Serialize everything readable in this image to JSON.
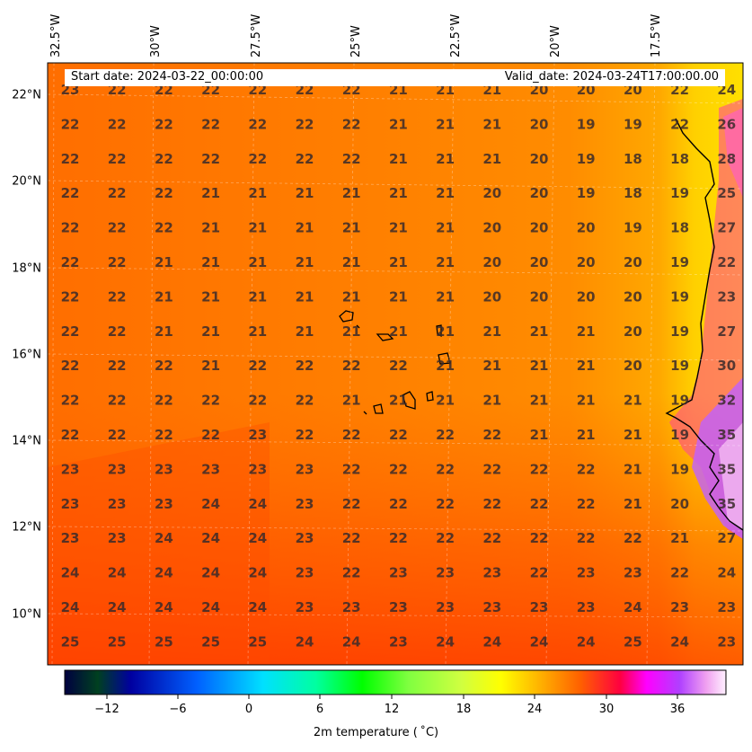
{
  "header": {
    "start_label": "Start date: 2024-03-22_00:00:00",
    "valid_label": "Valid_date: 2024-03-24T17:00:00.00"
  },
  "map": {
    "lon_labels": [
      "32.5°W",
      "30°W",
      "27.5°W",
      "25°W",
      "22.5°W",
      "20°W",
      "17.5°W"
    ],
    "lat_labels": [
      "22°N",
      "20°N",
      "18°N",
      "16°N",
      "14°N",
      "12°N",
      "10°N"
    ],
    "grid_values": [
      [
        23,
        22,
        22,
        22,
        22,
        22,
        22,
        21,
        21,
        21,
        20,
        20,
        20,
        22,
        24
      ],
      [
        22,
        22,
        22,
        22,
        22,
        22,
        22,
        21,
        21,
        21,
        20,
        19,
        19,
        22,
        26
      ],
      [
        22,
        22,
        22,
        22,
        22,
        22,
        22,
        21,
        21,
        21,
        20,
        19,
        18,
        18,
        28
      ],
      [
        22,
        22,
        22,
        21,
        21,
        21,
        21,
        21,
        21,
        20,
        20,
        19,
        18,
        19,
        25
      ],
      [
        22,
        22,
        22,
        21,
        21,
        21,
        21,
        21,
        21,
        20,
        20,
        20,
        19,
        18,
        27
      ],
      [
        22,
        22,
        21,
        21,
        21,
        21,
        21,
        21,
        21,
        20,
        20,
        20,
        20,
        19,
        22
      ],
      [
        22,
        22,
        21,
        21,
        21,
        21,
        21,
        21,
        21,
        20,
        20,
        20,
        20,
        19,
        23
      ],
      [
        22,
        22,
        21,
        21,
        21,
        21,
        21,
        21,
        21,
        21,
        21,
        21,
        20,
        19,
        27
      ],
      [
        22,
        22,
        22,
        21,
        22,
        22,
        22,
        22,
        21,
        21,
        21,
        21,
        20,
        19,
        30
      ],
      [
        22,
        22,
        22,
        22,
        22,
        22,
        21,
        21,
        21,
        21,
        21,
        21,
        21,
        19,
        32
      ],
      [
        22,
        22,
        22,
        22,
        23,
        22,
        22,
        22,
        22,
        22,
        21,
        21,
        21,
        19,
        35
      ],
      [
        23,
        23,
        23,
        23,
        23,
        23,
        22,
        22,
        22,
        22,
        22,
        22,
        21,
        19,
        35
      ],
      [
        23,
        23,
        23,
        24,
        24,
        23,
        22,
        22,
        22,
        22,
        22,
        22,
        21,
        20,
        35
      ],
      [
        23,
        23,
        24,
        24,
        24,
        23,
        22,
        22,
        22,
        22,
        22,
        22,
        22,
        21,
        27
      ],
      [
        24,
        24,
        24,
        24,
        24,
        23,
        22,
        23,
        23,
        23,
        22,
        23,
        23,
        22,
        24
      ],
      [
        24,
        24,
        24,
        24,
        24,
        23,
        23,
        23,
        23,
        23,
        23,
        23,
        24,
        23,
        23
      ],
      [
        25,
        25,
        25,
        25,
        25,
        24,
        24,
        23,
        24,
        24,
        24,
        24,
        25,
        24,
        23
      ]
    ]
  },
  "colorbar": {
    "ticks": [
      "−12",
      "−6",
      "0",
      "6",
      "12",
      "18",
      "24",
      "30",
      "36"
    ],
    "label": "2m temperature ($^\\circ$C)",
    "label_display": "2m temperature ( ˚C)"
  },
  "colors": {
    "ocean_warm": "#ff6a00",
    "ocean_mid": "#ff7f00",
    "ocean_cool": "#ff9c00",
    "coast_yellow": "#ffd400",
    "hot_magenta": "#e040fb",
    "hot_pink": "#f5a0f5"
  }
}
